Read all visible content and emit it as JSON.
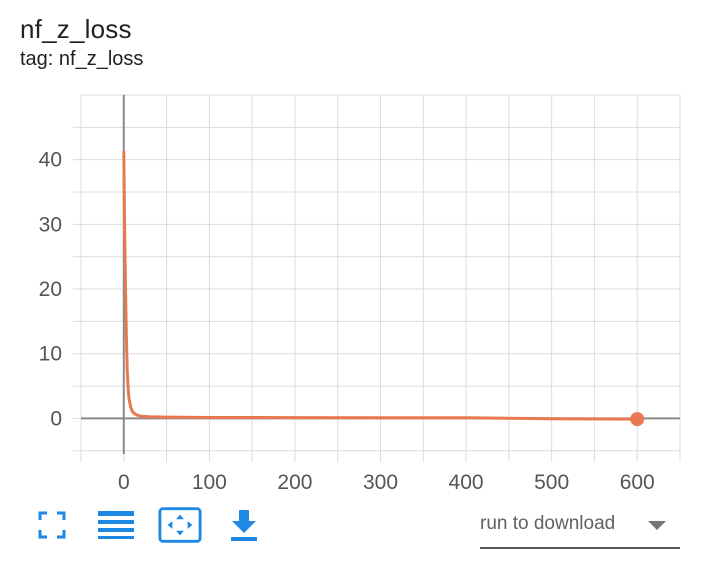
{
  "card": {
    "title": "nf_z_loss",
    "subtitle": "tag: nf_z_loss"
  },
  "chart_data": {
    "type": "line",
    "title": "nf_z_loss",
    "xlabel": "",
    "ylabel": "",
    "xlim": [
      -50,
      650
    ],
    "ylim": [
      -5.5,
      50
    ],
    "grid": true,
    "x_ticks": [
      0,
      100,
      200,
      300,
      400,
      500,
      600
    ],
    "y_ticks": [
      0,
      10,
      20,
      30,
      40
    ],
    "series": [
      {
        "color": "#e8784f",
        "x": [
          0,
          1,
          2,
          3,
          4,
          5,
          6,
          8,
          10,
          12,
          15,
          20,
          30,
          50,
          100,
          150,
          200,
          300,
          400,
          500,
          600
        ],
        "y": [
          41.2,
          30,
          20,
          12.5,
          7.5,
          4.8,
          3.2,
          1.8,
          1.1,
          0.8,
          0.55,
          0.35,
          0.25,
          0.2,
          0.15,
          0.15,
          0.12,
          0.1,
          0.1,
          -0.05,
          -0.1
        ]
      }
    ]
  },
  "toolbar": {
    "buttons": [
      {
        "name": "fullscreen-icon"
      },
      {
        "name": "toggle-log-scale-icon"
      },
      {
        "name": "fit-domain-icon"
      },
      {
        "name": "download-icon"
      }
    ]
  },
  "run_select": {
    "placeholder": "run to download"
  },
  "colors": {
    "series": "#e8784f",
    "grid": "#dcdcdc",
    "axis": "#8a8a8a",
    "accent": "#1e88e5"
  }
}
